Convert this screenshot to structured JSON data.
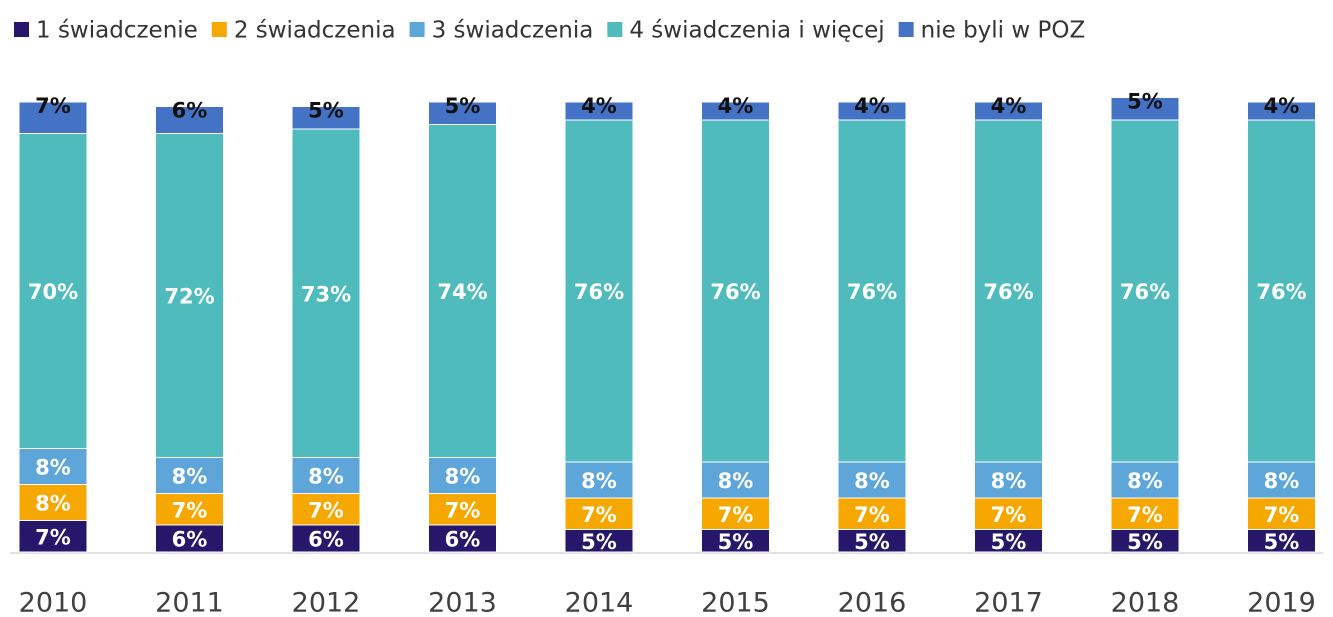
{
  "chart_data": {
    "type": "stacked-bar",
    "categories": [
      "2010",
      "2011",
      "2012",
      "2013",
      "2014",
      "2015",
      "2016",
      "2017",
      "2018",
      "2019"
    ],
    "ylim": [
      0,
      100
    ],
    "legend": "top",
    "series": [
      {
        "name": "1 świadczenie",
        "color": "#27176b",
        "values": [
          7,
          6,
          6,
          6,
          5,
          5,
          5,
          5,
          5,
          5
        ]
      },
      {
        "name": "2 świadczenia",
        "color": "#f6a800",
        "values": [
          8,
          7,
          7,
          7,
          7,
          7,
          7,
          7,
          7,
          7
        ]
      },
      {
        "name": "3 świadczenia",
        "color": "#5ea6da",
        "values": [
          8,
          8,
          8,
          8,
          8,
          8,
          8,
          8,
          8,
          8
        ]
      },
      {
        "name": "4 świadczenia i więcej",
        "color": "#4fbbbd",
        "values": [
          70,
          72,
          73,
          74,
          76,
          76,
          76,
          76,
          76,
          76
        ]
      },
      {
        "name": "nie byli w POZ",
        "color": "#4472c4",
        "values": [
          7,
          6,
          5,
          5,
          4,
          4,
          4,
          4,
          5,
          4
        ]
      }
    ],
    "value_labels": [
      [
        "7%",
        "6%",
        "6%",
        "6%",
        "5%",
        "5%",
        "5%",
        "5%",
        "5%",
        "5%"
      ],
      [
        "8%",
        "7%",
        "7%",
        "7%",
        "7%",
        "7%",
        "7%",
        "7%",
        "7%",
        "7%"
      ],
      [
        "8%",
        "8%",
        "8%",
        "8%",
        "8%",
        "8%",
        "8%",
        "8%",
        "8%",
        "8%"
      ],
      [
        "70%",
        "72%",
        "73%",
        "74%",
        "76%",
        "76%",
        "76%",
        "76%",
        "76%",
        "76%"
      ],
      [
        "7%",
        "6%",
        "5%",
        "5%",
        "4%",
        "4%",
        "4%",
        "4%",
        "5%",
        "4%"
      ]
    ]
  }
}
